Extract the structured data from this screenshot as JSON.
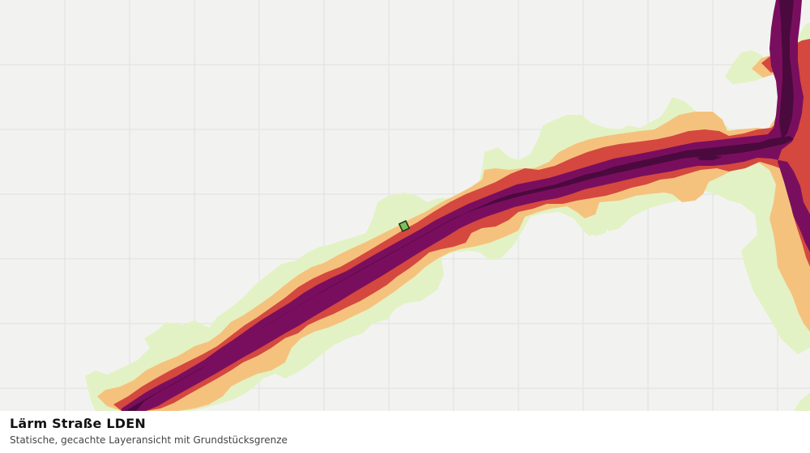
{
  "map": {
    "layer": "Lärm Straße LDEN",
    "grid": true,
    "colors": {
      "background": "#f2f3f1",
      "grid": "#e2e4e1",
      "band_1": "#e3f2c4",
      "band_2": "#f5c27e",
      "band_3": "#d4483f",
      "band_4": "#7a0e5e",
      "band_5": "#4a0a3e",
      "parcel_fill": "#7fbf5a",
      "parcel_outline": "#1e3a1e"
    }
  },
  "caption": {
    "title": "Lärm Straße LDEN",
    "subtitle": "Statische, gecachte Layeransicht mit Grundstücksgrenze"
  }
}
